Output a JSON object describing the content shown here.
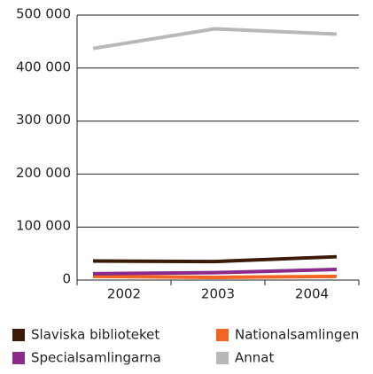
{
  "chart_data": {
    "type": "line",
    "categories": [
      "2002",
      "2003",
      "2004"
    ],
    "series": [
      {
        "name": "Slaviska biblioteket",
        "color": "#3b1a08",
        "values": [
          36000,
          35000,
          44000
        ]
      },
      {
        "name": "Nationalsamlingen",
        "color": "#f26522",
        "values": [
          7000,
          5000,
          7000
        ]
      },
      {
        "name": "Specialsamlingarna",
        "color": "#8b2a8b",
        "values": [
          12000,
          14000,
          20000
        ]
      },
      {
        "name": "Annat",
        "color": "#b8b8b8",
        "values": [
          437000,
          474000,
          464000
        ]
      }
    ],
    "ylim": [
      0,
      500000
    ],
    "yticks": [
      0,
      {
        "value": 100000,
        "label": "100 000"
      },
      {
        "value": 200000,
        "label": "200 000"
      },
      {
        "value": 300000,
        "label": "300 000"
      },
      {
        "value": 400000,
        "label": "400 000"
      },
      {
        "value": 500000,
        "label": "500 000"
      }
    ],
    "grid": true
  }
}
